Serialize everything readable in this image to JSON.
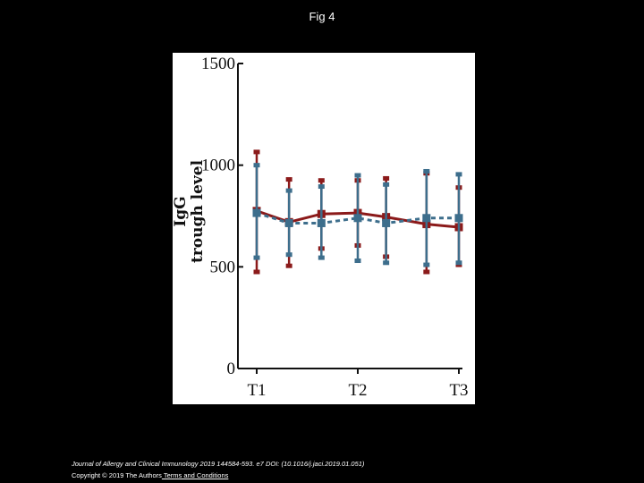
{
  "slide": {
    "title": "Fig 4"
  },
  "footer": {
    "citation": "Journal of Allergy and Clinical Immunology 2019 144584-593. e7 DOI: (10.1016/j.jaci.2019.01.051)",
    "copyright": "Copyright © 2019 The Authors",
    "terms_link": " Terms and Conditions"
  },
  "colors": {
    "series_red": "#8b1a1a",
    "series_blue": "#3d6e8c",
    "axis": "#111111",
    "background": "#000000"
  },
  "chart_data": {
    "type": "line",
    "ylabel_lines": [
      "IgG",
      "trough level"
    ],
    "ylim": [
      0,
      1500
    ],
    "yticks": [
      "1500",
      "1000",
      "500",
      "0"
    ],
    "ytick_values": [
      1500,
      1000,
      500,
      0
    ],
    "x": [
      1,
      1.5,
      2,
      2.5,
      3,
      3.5,
      4,
      4.5,
      5,
      5.5,
      6
    ],
    "xticks": [
      "T1",
      "T2",
      "T3"
    ],
    "xtick_values": [
      1,
      3.5,
      6
    ],
    "series": [
      {
        "style": "solid",
        "color": "#8b1a1a",
        "values": [
          775,
          720,
          760,
          765,
          745,
          710,
          695
        ],
        "x": [
          1,
          1.8,
          2.6,
          3.5,
          4.2,
          5.2,
          6
        ],
        "err_low": [
          475,
          505,
          590,
          605,
          550,
          475,
          510
        ],
        "err_high": [
          1065,
          930,
          925,
          925,
          935,
          960,
          890
        ]
      },
      {
        "style": "dashed",
        "color": "#3d6e8c",
        "values": [
          765,
          715,
          715,
          740,
          715,
          740,
          740
        ],
        "x": [
          1,
          1.8,
          2.6,
          3.5,
          4.2,
          5.2,
          6
        ],
        "err_low": [
          545,
          560,
          545,
          530,
          520,
          510,
          520
        ],
        "err_high": [
          1000,
          875,
          895,
          950,
          905,
          970,
          955
        ]
      }
    ]
  }
}
